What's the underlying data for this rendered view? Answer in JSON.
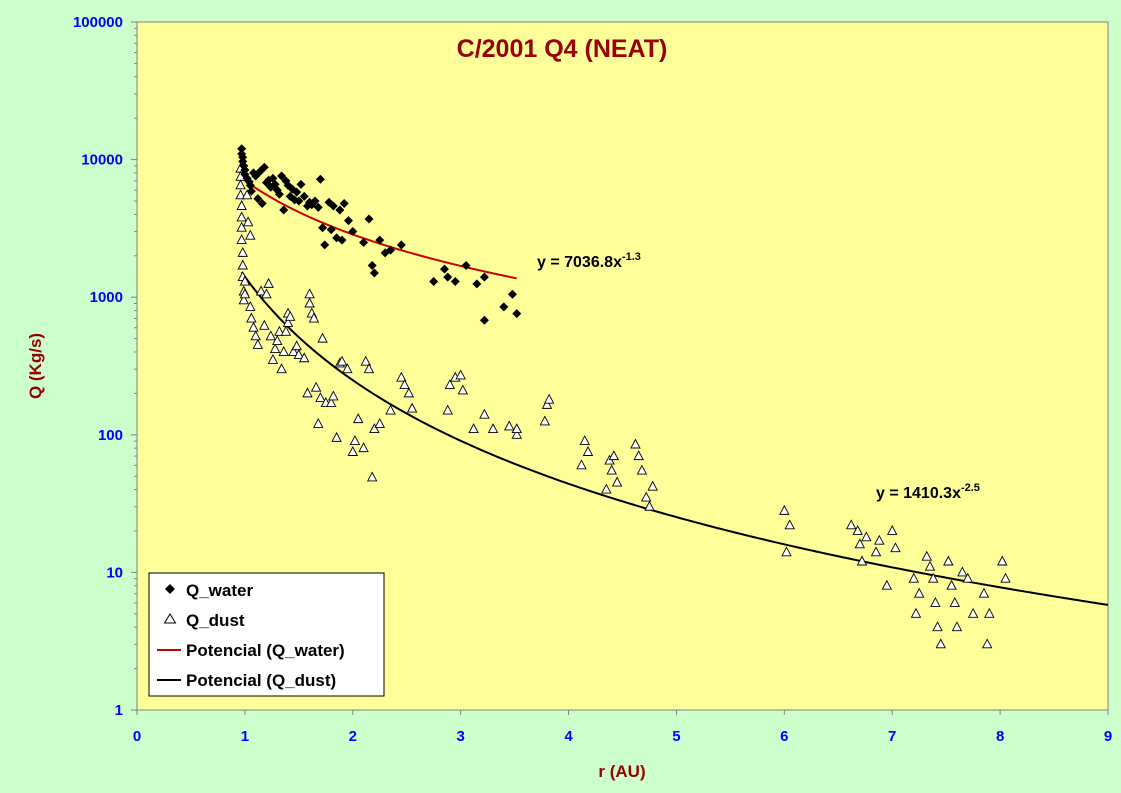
{
  "chart_data": {
    "type": "scatter",
    "title": "C/2001 Q4 (NEAT)",
    "xlabel": "r (AU)",
    "ylabel": "Q (Kg/s)",
    "xlim": [
      0,
      9
    ],
    "ylim": [
      1,
      100000
    ],
    "yscale": "log",
    "x_ticks": [
      "0",
      "1",
      "2",
      "3",
      "4",
      "5",
      "6",
      "7",
      "8",
      "9"
    ],
    "y_ticks": [
      "1",
      "10",
      "100",
      "1000",
      "10000",
      "100000"
    ],
    "grid": false,
    "legend_position": "bottom-left",
    "colors": {
      "page_bg": "#ccffcc",
      "plot_bg": "#ffff99",
      "title": "#990000",
      "ticks": "#0000ff",
      "water_fit": "#cc0000",
      "dust_fit": "#000000"
    },
    "series": [
      {
        "name": "Q_water",
        "marker": "filled-diamond",
        "color": "#000000",
        "points": [
          [
            0.97,
            12000
          ],
          [
            0.97,
            11000
          ],
          [
            0.98,
            10400
          ],
          [
            0.98,
            9700
          ],
          [
            0.99,
            9000
          ],
          [
            1.0,
            8400
          ],
          [
            1.0,
            7800
          ],
          [
            1.02,
            7300
          ],
          [
            1.04,
            6900
          ],
          [
            1.05,
            6500
          ],
          [
            1.06,
            5900
          ],
          [
            1.08,
            8000
          ],
          [
            1.1,
            7600
          ],
          [
            1.12,
            5200
          ],
          [
            1.14,
            8200
          ],
          [
            1.16,
            4800
          ],
          [
            1.18,
            8800
          ],
          [
            1.2,
            6800
          ],
          [
            1.22,
            7100
          ],
          [
            1.24,
            6300
          ],
          [
            1.26,
            7300
          ],
          [
            1.28,
            6600
          ],
          [
            1.3,
            6000
          ],
          [
            1.32,
            5600
          ],
          [
            1.34,
            7600
          ],
          [
            1.36,
            4300
          ],
          [
            1.38,
            7000
          ],
          [
            1.4,
            6500
          ],
          [
            1.42,
            5400
          ],
          [
            1.44,
            6100
          ],
          [
            1.46,
            5100
          ],
          [
            1.48,
            5800
          ],
          [
            1.5,
            5000
          ],
          [
            1.52,
            6600
          ],
          [
            1.55,
            5400
          ],
          [
            1.58,
            4600
          ],
          [
            1.6,
            4900
          ],
          [
            1.62,
            4700
          ],
          [
            1.65,
            5000
          ],
          [
            1.68,
            4500
          ],
          [
            1.7,
            7200
          ],
          [
            1.72,
            3200
          ],
          [
            1.74,
            2400
          ],
          [
            1.78,
            4900
          ],
          [
            1.8,
            3100
          ],
          [
            1.82,
            4600
          ],
          [
            1.85,
            2700
          ],
          [
            1.88,
            4300
          ],
          [
            1.9,
            2600
          ],
          [
            1.92,
            4800
          ],
          [
            1.96,
            3600
          ],
          [
            2.0,
            3000
          ],
          [
            2.1,
            2500
          ],
          [
            2.15,
            3700
          ],
          [
            2.18,
            1700
          ],
          [
            2.2,
            1500
          ],
          [
            2.25,
            2600
          ],
          [
            2.3,
            2100
          ],
          [
            2.35,
            2200
          ],
          [
            2.45,
            2400
          ],
          [
            2.75,
            1300
          ],
          [
            2.85,
            1600
          ],
          [
            2.88,
            1400
          ],
          [
            2.95,
            1300
          ],
          [
            3.05,
            1700
          ],
          [
            3.15,
            1250
          ],
          [
            3.22,
            1400
          ],
          [
            3.22,
            680
          ],
          [
            3.4,
            850
          ],
          [
            3.48,
            1050
          ],
          [
            3.52,
            760
          ]
        ]
      },
      {
        "name": "Q_dust",
        "marker": "open-triangle",
        "color": "#000000",
        "points": [
          [
            0.96,
            8600
          ],
          [
            0.96,
            7500
          ],
          [
            0.96,
            6500
          ],
          [
            0.96,
            5500
          ],
          [
            0.97,
            4600
          ],
          [
            0.97,
            3800
          ],
          [
            0.97,
            3200
          ],
          [
            0.97,
            2600
          ],
          [
            0.98,
            2100
          ],
          [
            0.98,
            1700
          ],
          [
            0.98,
            1400
          ],
          [
            0.99,
            1100
          ],
          [
            0.99,
            950
          ],
          [
            1.0,
            1300
          ],
          [
            1.0,
            1050
          ],
          [
            1.02,
            5500
          ],
          [
            1.03,
            3500
          ],
          [
            1.05,
            2800
          ],
          [
            1.05,
            850
          ],
          [
            1.06,
            700
          ],
          [
            1.08,
            600
          ],
          [
            1.1,
            520
          ],
          [
            1.12,
            450
          ],
          [
            1.15,
            1100
          ],
          [
            1.18,
            620
          ],
          [
            1.2,
            1050
          ],
          [
            1.22,
            1250
          ],
          [
            1.24,
            520
          ],
          [
            1.26,
            350
          ],
          [
            1.28,
            420
          ],
          [
            1.3,
            480
          ],
          [
            1.32,
            560
          ],
          [
            1.34,
            300
          ],
          [
            1.36,
            400
          ],
          [
            1.38,
            560
          ],
          [
            1.4,
            760
          ],
          [
            1.4,
            650
          ],
          [
            1.42,
            720
          ],
          [
            1.45,
            400
          ],
          [
            1.48,
            440
          ],
          [
            1.5,
            380
          ],
          [
            1.55,
            360
          ],
          [
            1.58,
            200
          ],
          [
            1.6,
            1050
          ],
          [
            1.6,
            900
          ],
          [
            1.62,
            760
          ],
          [
            1.64,
            700
          ],
          [
            1.66,
            220
          ],
          [
            1.68,
            120
          ],
          [
            1.7,
            185
          ],
          [
            1.72,
            500
          ],
          [
            1.75,
            170
          ],
          [
            1.8,
            170
          ],
          [
            1.82,
            190
          ],
          [
            1.85,
            95
          ],
          [
            1.88,
            330
          ],
          [
            1.9,
            340
          ],
          [
            1.95,
            300
          ],
          [
            2.0,
            75
          ],
          [
            2.02,
            90
          ],
          [
            2.05,
            130
          ],
          [
            2.1,
            80
          ],
          [
            2.12,
            340
          ],
          [
            2.15,
            300
          ],
          [
            2.18,
            49
          ],
          [
            2.2,
            110
          ],
          [
            2.25,
            120
          ],
          [
            2.35,
            150
          ],
          [
            2.45,
            260
          ],
          [
            2.48,
            230
          ],
          [
            2.52,
            200
          ],
          [
            2.55,
            155
          ],
          [
            2.88,
            150
          ],
          [
            2.9,
            230
          ],
          [
            2.95,
            260
          ],
          [
            3.0,
            270
          ],
          [
            3.02,
            210
          ],
          [
            3.12,
            110
          ],
          [
            3.22,
            140
          ],
          [
            3.3,
            110
          ],
          [
            3.45,
            115
          ],
          [
            3.52,
            100
          ],
          [
            3.52,
            110
          ],
          [
            3.78,
            125
          ],
          [
            3.8,
            165
          ],
          [
            3.82,
            180
          ],
          [
            4.12,
            60
          ],
          [
            4.15,
            90
          ],
          [
            4.18,
            75
          ],
          [
            4.35,
            40
          ],
          [
            4.38,
            65
          ],
          [
            4.4,
            55
          ],
          [
            4.42,
            70
          ],
          [
            4.45,
            45
          ],
          [
            4.62,
            85
          ],
          [
            4.65,
            70
          ],
          [
            4.68,
            55
          ],
          [
            4.72,
            35
          ],
          [
            4.75,
            30
          ],
          [
            4.78,
            42
          ],
          [
            6.0,
            28
          ],
          [
            6.02,
            14
          ],
          [
            6.05,
            22
          ],
          [
            6.62,
            22
          ],
          [
            6.68,
            20
          ],
          [
            6.7,
            16
          ],
          [
            6.72,
            12
          ],
          [
            6.76,
            18
          ],
          [
            6.85,
            14
          ],
          [
            6.88,
            17
          ],
          [
            6.95,
            8
          ],
          [
            7.0,
            20
          ],
          [
            7.03,
            15
          ],
          [
            7.2,
            9
          ],
          [
            7.22,
            5
          ],
          [
            7.25,
            7
          ],
          [
            7.32,
            13
          ],
          [
            7.35,
            11
          ],
          [
            7.38,
            9
          ],
          [
            7.4,
            6
          ],
          [
            7.42,
            4
          ],
          [
            7.45,
            3
          ],
          [
            7.52,
            12
          ],
          [
            7.55,
            8
          ],
          [
            7.58,
            6
          ],
          [
            7.6,
            4
          ],
          [
            7.65,
            10
          ],
          [
            7.7,
            9
          ],
          [
            7.75,
            5
          ],
          [
            7.85,
            7
          ],
          [
            7.88,
            3
          ],
          [
            7.9,
            5
          ],
          [
            8.02,
            12
          ],
          [
            8.05,
            9
          ]
        ]
      }
    ],
    "trendlines": [
      {
        "name": "Potencial (Q_water)",
        "equation": "y = 7036.8x",
        "exponent": "-1.3",
        "a": 7036.8,
        "b": -1.3,
        "x_range": [
          0.97,
          3.52
        ],
        "color": "#cc0000"
      },
      {
        "name": "Potencial (Q_dust)",
        "equation": "y = 1410.3x",
        "exponent": "-2.5",
        "a": 1410.3,
        "b": -2.5,
        "x_range": [
          0.97,
          9.0
        ],
        "color": "#000000"
      }
    ]
  },
  "legend": {
    "water": "Q_water",
    "dust": "Q_dust",
    "water_fit": "Potencial (Q_water)",
    "dust_fit": "Potencial (Q_dust)"
  }
}
